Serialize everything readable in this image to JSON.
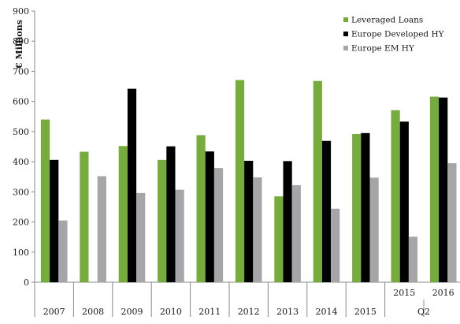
{
  "chart_data": {
    "type": "bar",
    "title": "",
    "xlabel": "",
    "ylabel": "€ Millions",
    "ylim": [
      0,
      900
    ],
    "yticks": [
      0,
      100,
      200,
      300,
      400,
      500,
      600,
      700,
      800,
      900
    ],
    "grid": false,
    "legend_position": "top-right",
    "categories": [
      "2007",
      "2008",
      "2009",
      "2010",
      "2011",
      "2012",
      "2013",
      "2014",
      "2015",
      "2015",
      "2016"
    ],
    "group_label": {
      "text": "Q2",
      "covers": [
        "2015",
        "2016"
      ]
    },
    "series": [
      {
        "name": "Leveraged Loans",
        "color": "#76ac3b",
        "values": [
          540,
          433,
          452,
          406,
          488,
          671,
          285,
          668,
          492,
          571,
          616
        ]
      },
      {
        "name": "Europe Developed HY",
        "color": "#000000",
        "values": [
          406,
          0,
          642,
          451,
          434,
          403,
          402,
          469,
          495,
          533,
          613
        ]
      },
      {
        "name": "Europe EM HY",
        "color": "#a6a6a8",
        "values": [
          205,
          352,
          296,
          307,
          379,
          348,
          322,
          244,
          347,
          151,
          395
        ]
      }
    ]
  }
}
